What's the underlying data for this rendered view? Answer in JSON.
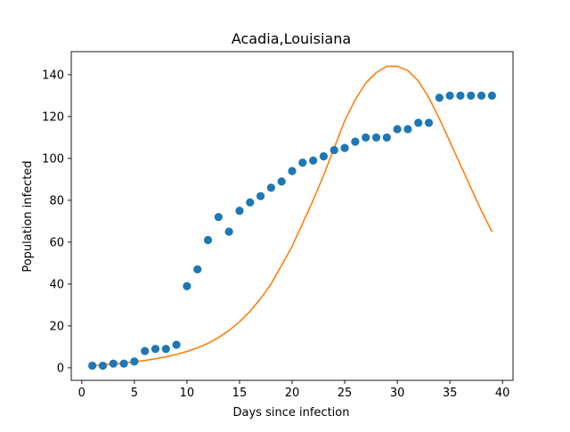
{
  "chart_data": {
    "type": "scatter",
    "title": "Acadia,Louisiana",
    "xlabel": "Days since infection",
    "ylabel": "Population infected",
    "xlim": [
      -1,
      41
    ],
    "ylim": [
      -6,
      151
    ],
    "xticks": [
      0,
      5,
      10,
      15,
      20,
      25,
      30,
      35,
      40
    ],
    "yticks": [
      0,
      20,
      40,
      60,
      80,
      100,
      120,
      140
    ],
    "grid": false,
    "legend": "none",
    "series": [
      {
        "kind": "scatter",
        "color": "#1f77b4",
        "x": [
          1,
          2,
          3,
          4,
          5,
          6,
          7,
          8,
          9,
          10,
          11,
          12,
          13,
          14,
          15,
          16,
          17,
          18,
          19,
          20,
          21,
          22,
          23,
          24,
          25,
          26,
          27,
          28,
          29,
          30,
          31,
          32,
          33,
          34,
          35,
          36,
          37,
          38,
          39
        ],
        "y": [
          1,
          1,
          2,
          2,
          3,
          8,
          9,
          9,
          11,
          39,
          47,
          61,
          72,
          65,
          75,
          79,
          82,
          86,
          89,
          94,
          98,
          99,
          101,
          104,
          105,
          108,
          110,
          110,
          110,
          114,
          114,
          117,
          117,
          129,
          130,
          130,
          130,
          130,
          130
        ]
      },
      {
        "kind": "line",
        "color": "#ff7f0e",
        "x": [
          1,
          2,
          3,
          4,
          5,
          6,
          7,
          8,
          9,
          10,
          11,
          12,
          13,
          14,
          15,
          16,
          17,
          18,
          19,
          20,
          21,
          22,
          23,
          24,
          25,
          26,
          27,
          28,
          29,
          30,
          31,
          32,
          33,
          34,
          35,
          36,
          37,
          38,
          39
        ],
        "y": [
          1,
          1.4,
          1.8,
          2.3,
          2.8,
          3.5,
          4.3,
          5.2,
          6.4,
          7.8,
          9.5,
          11.7,
          14.4,
          17.8,
          22,
          27,
          33,
          40,
          49,
          58,
          69,
          80,
          92,
          105,
          118,
          128,
          136,
          141,
          144,
          144,
          142,
          137,
          129,
          119,
          108,
          97,
          86,
          75,
          65
        ]
      }
    ]
  }
}
